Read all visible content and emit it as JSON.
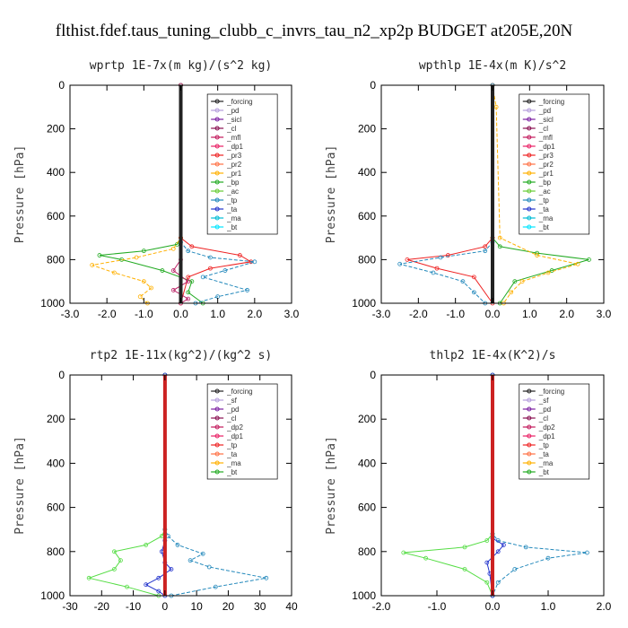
{
  "figure_title": "flthist.fdef.taus_tuning_clubb_c_invrs_tau_n2_xp2p  BUDGET at205E,20N",
  "chart_data": [
    {
      "type": "line",
      "title": "wprtp   1E-7x(m kg)/(s^2 kg)",
      "ylabel": "Pressure [hPa]",
      "xlim": [
        -3,
        3
      ],
      "ylim": [
        1000,
        0
      ],
      "xticks": [
        -3,
        -2,
        -1,
        0,
        1,
        2,
        3
      ],
      "xtick_labels": [
        "-3.0",
        "-2.0",
        "-1.0",
        "0.0",
        "1.0",
        "2.0",
        "3.0"
      ],
      "yticks": [
        0,
        200,
        400,
        600,
        800,
        1000
      ],
      "ytick_labels": [
        "0",
        "200",
        "400",
        "600",
        "800",
        "1000"
      ],
      "legend": [
        "_forcing",
        "_pd",
        "_sicl",
        "_cl",
        "_mfl",
        "_dp1",
        "_pr3",
        "_pr2",
        "_pr1",
        "_bp",
        "_ac",
        "_tp",
        "_ta",
        "_ma",
        "_bt"
      ],
      "series": [
        {
          "name": "_bp",
          "color": "#22aa22",
          "x": [
            0,
            0,
            -0.1,
            -1.0,
            -2.2,
            -1.6,
            -0.5,
            0.3,
            0.2,
            0.6
          ],
          "y": [
            0,
            700,
            730,
            760,
            780,
            800,
            850,
            900,
            950,
            1000
          ]
        },
        {
          "name": "_pr1",
          "color": "#ffb000",
          "x": [
            0,
            0,
            -0.2,
            -1.2,
            -2.4,
            -1.8,
            -1.0,
            -0.8,
            -1.1,
            -0.9
          ],
          "y": [
            0,
            700,
            750,
            790,
            825,
            860,
            900,
            930,
            970,
            1000
          ]
        },
        {
          "name": "_pr3",
          "color": "#ee2222",
          "x": [
            0,
            0,
            0.3,
            1.6,
            1.9,
            0.8,
            0.2,
            0
          ],
          "y": [
            0,
            700,
            740,
            780,
            810,
            840,
            880,
            1000
          ]
        },
        {
          "name": "_tp",
          "color": "#2288bb",
          "x": [
            0,
            0,
            0.2,
            0.8,
            2.0,
            1.2,
            0.6,
            1.8,
            1.0,
            0.4
          ],
          "y": [
            0,
            720,
            760,
            790,
            810,
            850,
            880,
            940,
            970,
            1000
          ]
        },
        {
          "name": "_mfl",
          "color": "#bb2266",
          "x": [
            0,
            0,
            -0.2,
            0.2,
            -0.2,
            0.2,
            0
          ],
          "y": [
            0,
            800,
            850,
            900,
            940,
            980,
            1000
          ]
        },
        {
          "name": "_forcing",
          "color": "#222222",
          "x": [
            0,
            0
          ],
          "y": [
            0,
            1000
          ]
        }
      ]
    },
    {
      "type": "line",
      "title": "wpthlp   1E-4x(m K)/s^2",
      "ylabel": "Pressure [hPa]",
      "xlim": [
        -3,
        3
      ],
      "ylim": [
        1000,
        0
      ],
      "xticks": [
        -3,
        -2,
        -1,
        0,
        1,
        2,
        3
      ],
      "xtick_labels": [
        "-3.0",
        "-2.0",
        "-1.0",
        "0.0",
        "1.0",
        "2.0",
        "3.0"
      ],
      "yticks": [
        0,
        200,
        400,
        600,
        800,
        1000
      ],
      "ytick_labels": [
        "0",
        "200",
        "400",
        "600",
        "800",
        "1000"
      ],
      "legend": [
        "_forcing",
        "_pd",
        "_sicl",
        "_cl",
        "_mfl",
        "_dp1",
        "_pr3",
        "_pr2",
        "_pr1",
        "_bp",
        "_ac",
        "_tp",
        "_ta",
        "_ma",
        "_bt"
      ],
      "series": [
        {
          "name": "_bp",
          "color": "#22aa22",
          "x": [
            0,
            0,
            0.2,
            1.2,
            2.6,
            1.6,
            0.6,
            0.2
          ],
          "y": [
            0,
            700,
            740,
            770,
            800,
            850,
            900,
            1000
          ]
        },
        {
          "name": "_pr1",
          "color": "#ffb000",
          "x": [
            0,
            0.1,
            0.2,
            1.2,
            2.3,
            1.5,
            0.8,
            0.5,
            0.3
          ],
          "y": [
            0,
            100,
            700,
            780,
            820,
            860,
            900,
            950,
            1000
          ]
        },
        {
          "name": "_pr3",
          "color": "#ee2222",
          "x": [
            0,
            0,
            -0.2,
            -1.2,
            -2.3,
            -1.5,
            -0.5,
            0
          ],
          "y": [
            0,
            700,
            740,
            780,
            800,
            840,
            880,
            1000
          ]
        },
        {
          "name": "_tp",
          "color": "#2288bb",
          "x": [
            0,
            0,
            -0.2,
            -1.4,
            -2.5,
            -1.6,
            -0.8,
            -0.5,
            -0.2
          ],
          "y": [
            0,
            720,
            760,
            790,
            820,
            860,
            900,
            950,
            1000
          ]
        },
        {
          "name": "_forcing",
          "color": "#222222",
          "x": [
            0,
            0
          ],
          "y": [
            0,
            1000
          ]
        }
      ]
    },
    {
      "type": "line",
      "title": "rtp2   1E-11x(kg^2)/(kg^2 s)",
      "ylabel": "Pressure [hPa]",
      "xlim": [
        -30,
        40
      ],
      "ylim": [
        1000,
        0
      ],
      "xticks": [
        -30,
        -20,
        -10,
        0,
        10,
        20,
        30,
        40
      ],
      "xtick_labels": [
        "-30",
        "-20",
        "-10",
        "0",
        "10",
        "20",
        "30",
        "40"
      ],
      "yticks": [
        0,
        200,
        400,
        600,
        800,
        1000
      ],
      "ytick_labels": [
        "0",
        "200",
        "400",
        "600",
        "800",
        "1000"
      ],
      "legend": [
        "_forcing",
        "_sf",
        "_pd",
        "_cl",
        "_dp2",
        "_dp1",
        "_tp",
        "_ta",
        "_ma",
        "_bt"
      ],
      "series": [
        {
          "name": "_dp1",
          "color": "#55dd44",
          "x": [
            0,
            0,
            -1,
            -6,
            -16,
            -14,
            -16,
            -24,
            -12,
            -2
          ],
          "y": [
            0,
            700,
            730,
            770,
            800,
            840,
            880,
            920,
            960,
            1000
          ]
        },
        {
          "name": "_tp",
          "color": "#2288bb",
          "x": [
            0,
            0,
            1,
            4,
            12,
            8,
            14,
            32,
            16,
            2
          ],
          "y": [
            0,
            700,
            730,
            770,
            810,
            840,
            870,
            920,
            960,
            1000
          ]
        },
        {
          "name": "_ta",
          "color": "#2233cc",
          "x": [
            0,
            0,
            -1,
            0,
            2,
            -2,
            -6,
            -2,
            0
          ],
          "y": [
            0,
            750,
            800,
            850,
            880,
            920,
            950,
            980,
            1000
          ]
        },
        {
          "name": "_forcing",
          "color": "#cc2222",
          "x": [
            0,
            0
          ],
          "y": [
            0,
            1000
          ]
        }
      ]
    },
    {
      "type": "line",
      "title": "thlp2   1E-4x(K^2)/s",
      "ylabel": "Pressure [hPa]",
      "xlim": [
        -2,
        2
      ],
      "ylim": [
        1000,
        0
      ],
      "xticks": [
        -2,
        -1,
        0,
        1,
        2
      ],
      "xtick_labels": [
        "-2.0",
        "-1.0",
        "0.0",
        "1.0",
        "2.0"
      ],
      "yticks": [
        0,
        200,
        400,
        600,
        800,
        1000
      ],
      "ytick_labels": [
        "0",
        "200",
        "400",
        "600",
        "800",
        "1000"
      ],
      "legend": [
        "_forcing",
        "_sf",
        "_pd",
        "_cl",
        "_dp2",
        "_dp1",
        "_tp",
        "_ta",
        "_ma",
        "_bt"
      ],
      "series": [
        {
          "name": "_dp1",
          "color": "#55dd44",
          "x": [
            0,
            0,
            -0.1,
            -0.5,
            -1.6,
            -1.2,
            -0.5,
            -0.1,
            0
          ],
          "y": [
            0,
            720,
            750,
            780,
            805,
            830,
            880,
            940,
            1000
          ]
        },
        {
          "name": "_tp",
          "color": "#2288bb",
          "x": [
            0,
            0,
            0.1,
            0.6,
            1.7,
            1.0,
            0.4,
            0.1,
            0
          ],
          "y": [
            0,
            720,
            750,
            780,
            805,
            830,
            880,
            940,
            1000
          ]
        },
        {
          "name": "_ta",
          "color": "#2233cc",
          "x": [
            0,
            0,
            0.2,
            0.1,
            -0.1,
            -0.05,
            0
          ],
          "y": [
            0,
            740,
            770,
            800,
            850,
            900,
            1000
          ]
        },
        {
          "name": "_forcing",
          "color": "#cc2222",
          "x": [
            0,
            0
          ],
          "y": [
            0,
            1000
          ]
        }
      ]
    }
  ]
}
